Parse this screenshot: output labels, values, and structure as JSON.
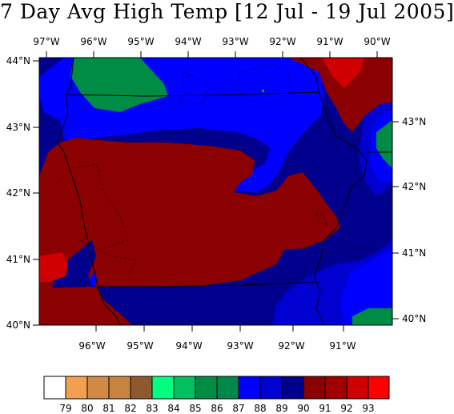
{
  "title": "7 Day Avg High Temp [12 Jul - 19 Jul 2005]",
  "map": {
    "top_lon_labels": [
      "97°W",
      "96°W",
      "95°W",
      "94°W",
      "93°W",
      "92°W",
      "91°W",
      "90°W"
    ],
    "bottom_lon_labels": [
      "96°W",
      "95°W",
      "94°W",
      "93°W",
      "92°W",
      "91°W"
    ],
    "left_lat_labels": [
      "44°N",
      "43°N",
      "42°N",
      "41°N",
      "40°N"
    ],
    "right_lat_labels": [
      "43°N",
      "42°N",
      "41°N",
      "40°N"
    ]
  },
  "colors": {
    "c79": "#ffffff",
    "c80": "#f0a050",
    "c81": "#d08a45",
    "c82": "#c8843e",
    "c83": "#8c5a2e",
    "c84": "#00ff80",
    "c85": "#00c060",
    "c86": "#008c45",
    "c87": "#00874a",
    "c88": "#0000ff",
    "c89": "#0000d0",
    "c90": "#00008c",
    "c91": "#8b0000",
    "c92": "#a00000",
    "c93": "#d00000",
    "c94": "#ff0000"
  },
  "legend": {
    "labels": [
      "79",
      "80",
      "81",
      "82",
      "83",
      "84",
      "85",
      "86",
      "87",
      "88",
      "89",
      "90",
      "91",
      "92",
      "93"
    ]
  }
}
